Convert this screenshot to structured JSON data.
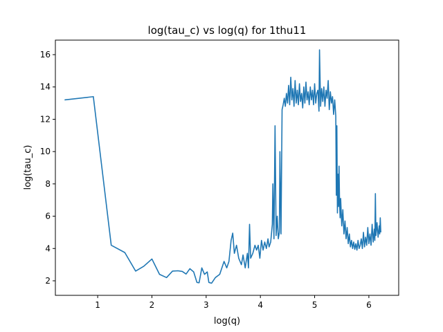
{
  "chart_data": {
    "type": "line",
    "title": "log(tau_c) vs log(q) for 1thu11",
    "xlabel": "log(q)",
    "ylabel": "log(tau_c)",
    "xlim": [
      0.22,
      6.55
    ],
    "ylim": [
      1.1,
      16.9
    ],
    "xticks": [
      1,
      2,
      3,
      4,
      5,
      6
    ],
    "yticks": [
      2,
      4,
      6,
      8,
      10,
      12,
      14,
      16
    ],
    "grid": false,
    "line_color": "#1f77b4",
    "series": [
      {
        "values": [
          [
            0.39,
            13.2
          ],
          [
            0.92,
            13.4
          ],
          [
            1.25,
            4.2
          ],
          [
            1.5,
            3.75
          ],
          [
            1.7,
            2.6
          ],
          [
            1.85,
            2.9
          ],
          [
            2.0,
            3.35
          ],
          [
            2.14,
            2.4
          ],
          [
            2.27,
            2.2
          ],
          [
            2.38,
            2.6
          ],
          [
            2.48,
            2.62
          ],
          [
            2.56,
            2.58
          ],
          [
            2.63,
            2.42
          ],
          [
            2.7,
            2.75
          ],
          [
            2.77,
            2.55
          ],
          [
            2.83,
            1.9
          ],
          [
            2.87,
            1.88
          ],
          [
            2.92,
            2.8
          ],
          [
            2.97,
            2.4
          ],
          [
            3.02,
            2.55
          ],
          [
            3.05,
            1.9
          ],
          [
            3.1,
            1.85
          ],
          [
            3.17,
            2.2
          ],
          [
            3.25,
            2.4
          ],
          [
            3.33,
            3.2
          ],
          [
            3.38,
            2.8
          ],
          [
            3.42,
            3.2
          ],
          [
            3.46,
            4.5
          ],
          [
            3.49,
            4.95
          ],
          [
            3.52,
            3.7
          ],
          [
            3.56,
            4.2
          ],
          [
            3.6,
            3.4
          ],
          [
            3.65,
            3.0
          ],
          [
            3.68,
            3.6
          ],
          [
            3.72,
            2.8
          ],
          [
            3.76,
            3.7
          ],
          [
            3.78,
            2.8
          ],
          [
            3.8,
            5.5
          ],
          [
            3.82,
            3.4
          ],
          [
            3.86,
            3.7
          ],
          [
            3.9,
            4.2
          ],
          [
            3.93,
            3.9
          ],
          [
            3.96,
            4.2
          ],
          [
            3.99,
            3.4
          ],
          [
            4.02,
            4.5
          ],
          [
            4.05,
            3.9
          ],
          [
            4.08,
            4.4
          ],
          [
            4.11,
            4.0
          ],
          [
            4.14,
            4.6
          ],
          [
            4.16,
            4.1
          ],
          [
            4.19,
            4.4
          ],
          [
            4.22,
            5.5
          ],
          [
            4.23,
            8.0
          ],
          [
            4.25,
            4.6
          ],
          [
            4.27,
            11.6
          ],
          [
            4.29,
            4.8
          ],
          [
            4.31,
            6.0
          ],
          [
            4.33,
            4.6
          ],
          [
            4.35,
            5.0
          ],
          [
            4.36,
            10.0
          ],
          [
            4.38,
            4.9
          ],
          [
            4.4,
            12.6
          ],
          [
            4.42,
            12.9
          ],
          [
            4.44,
            13.3
          ],
          [
            4.46,
            12.8
          ],
          [
            4.48,
            13.6
          ],
          [
            4.5,
            13.0
          ],
          [
            4.52,
            14.1
          ],
          [
            4.54,
            12.9
          ],
          [
            4.56,
            14.6
          ],
          [
            4.58,
            13.2
          ],
          [
            4.6,
            13.9
          ],
          [
            4.62,
            12.8
          ],
          [
            4.64,
            14.4
          ],
          [
            4.66,
            13.0
          ],
          [
            4.68,
            13.8
          ],
          [
            4.7,
            12.9
          ],
          [
            4.72,
            14.2
          ],
          [
            4.74,
            13.1
          ],
          [
            4.76,
            13.6
          ],
          [
            4.78,
            12.7
          ],
          [
            4.8,
            14.0
          ],
          [
            4.82,
            13.0
          ],
          [
            4.84,
            14.3
          ],
          [
            4.86,
            13.2
          ],
          [
            4.88,
            13.7
          ],
          [
            4.9,
            12.9
          ],
          [
            4.92,
            14.0
          ],
          [
            4.94,
            13.2
          ],
          [
            4.96,
            13.8
          ],
          [
            4.98,
            12.9
          ],
          [
            5.0,
            14.2
          ],
          [
            5.02,
            13.0
          ],
          [
            5.04,
            13.6
          ],
          [
            5.06,
            13.8
          ],
          [
            5.08,
            12.5
          ],
          [
            5.09,
            16.3
          ],
          [
            5.11,
            12.8
          ],
          [
            5.13,
            13.9
          ],
          [
            5.15,
            13.1
          ],
          [
            5.17,
            14.0
          ],
          [
            5.19,
            12.8
          ],
          [
            5.21,
            13.8
          ],
          [
            5.23,
            13.3
          ],
          [
            5.25,
            14.4
          ],
          [
            5.27,
            12.6
          ],
          [
            5.29,
            13.7
          ],
          [
            5.31,
            13.0
          ],
          [
            5.33,
            13.4
          ],
          [
            5.35,
            12.3
          ],
          [
            5.37,
            13.2
          ],
          [
            5.39,
            12.2
          ],
          [
            5.4,
            7.3
          ],
          [
            5.41,
            11.6
          ],
          [
            5.42,
            6.2
          ],
          [
            5.43,
            8.6
          ],
          [
            5.44,
            6.6
          ],
          [
            5.45,
            9.1
          ],
          [
            5.46,
            6.8
          ],
          [
            5.47,
            5.9
          ],
          [
            5.48,
            7.1
          ],
          [
            5.5,
            5.4
          ],
          [
            5.52,
            6.4
          ],
          [
            5.54,
            4.9
          ],
          [
            5.56,
            5.7
          ],
          [
            5.58,
            4.6
          ],
          [
            5.6,
            5.3
          ],
          [
            5.62,
            4.3
          ],
          [
            5.64,
            4.9
          ],
          [
            5.66,
            4.1
          ],
          [
            5.68,
            4.5
          ],
          [
            5.7,
            4.0
          ],
          [
            5.72,
            4.4
          ],
          [
            5.74,
            3.95
          ],
          [
            5.76,
            4.3
          ],
          [
            5.78,
            3.9
          ],
          [
            5.8,
            4.5
          ],
          [
            5.82,
            4.0
          ],
          [
            5.84,
            4.2
          ],
          [
            5.86,
            4.6
          ],
          [
            5.88,
            4.0
          ],
          [
            5.9,
            5.0
          ],
          [
            5.92,
            4.1
          ],
          [
            5.94,
            4.7
          ],
          [
            5.96,
            4.2
          ],
          [
            5.98,
            5.3
          ],
          [
            6.0,
            4.3
          ],
          [
            6.02,
            4.9
          ],
          [
            6.04,
            4.2
          ],
          [
            6.06,
            5.5
          ],
          [
            6.08,
            4.4
          ],
          [
            6.1,
            5.2
          ],
          [
            6.11,
            4.5
          ],
          [
            6.12,
            7.4
          ],
          [
            6.13,
            4.8
          ],
          [
            6.15,
            5.6
          ],
          [
            6.17,
            4.7
          ],
          [
            6.19,
            5.4
          ],
          [
            6.2,
            4.9
          ],
          [
            6.21,
            5.9
          ],
          [
            6.22,
            5.0
          ]
        ]
      }
    ]
  }
}
